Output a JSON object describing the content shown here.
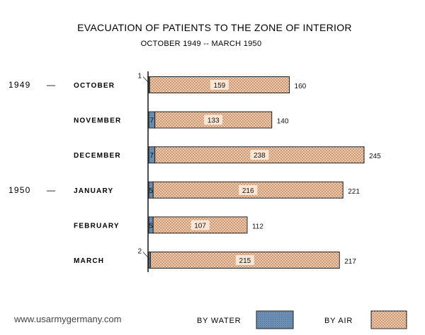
{
  "site_credit": "www.usarmygermany.com",
  "chart_data": {
    "type": "bar",
    "orientation": "horizontal",
    "stacked": true,
    "title": "EVACUATION OF PATIENTS TO THE ZONE OF INTERIOR",
    "subtitle": "OCTOBER 1949 -- MARCH 1950",
    "categories": [
      "OCTOBER",
      "NOVEMBER",
      "DECEMBER",
      "JANUARY",
      "FEBRUARY",
      "MARCH"
    ],
    "year_labels": [
      {
        "category": "OCTOBER",
        "year": "1949",
        "dash": "—"
      },
      {
        "category": "JANUARY",
        "year": "1950",
        "dash": "—"
      }
    ],
    "series": [
      {
        "name": "BY WATER",
        "values": [
          1,
          7,
          7,
          5,
          5,
          2
        ],
        "color": "#6d8fb3"
      },
      {
        "name": "BY AIR",
        "values": [
          159,
          133,
          238,
          216,
          107,
          215
        ],
        "color": "#f2c9a8"
      }
    ],
    "totals": [
      160,
      140,
      245,
      221,
      112,
      217
    ],
    "xlim": [
      0,
      245
    ],
    "grid": false,
    "legend_position": "bottom"
  }
}
